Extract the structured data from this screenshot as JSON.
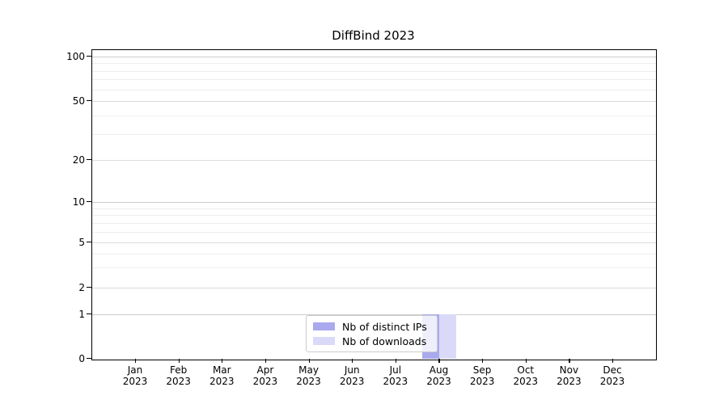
{
  "title": "DiffBind 2023",
  "chart_data": {
    "type": "bar",
    "title": "DiffBind 2023",
    "categories": [
      "Jan 2023",
      "Feb 2023",
      "Mar 2023",
      "Apr 2023",
      "May 2023",
      "Jun 2023",
      "Jul 2023",
      "Aug 2023",
      "Sep 2023",
      "Oct 2023",
      "Nov 2023",
      "Dec 2023"
    ],
    "series": [
      {
        "name": "Nb of distinct IPs",
        "color": "#a9a9ee",
        "values": [
          0,
          0,
          0,
          0,
          0,
          0,
          0,
          1,
          0,
          0,
          0,
          0
        ]
      },
      {
        "name": "Nb of downloads",
        "color": "#dadaf8",
        "values": [
          0,
          0,
          0,
          0,
          0,
          0,
          0,
          1,
          0,
          0,
          0,
          0
        ]
      }
    ],
    "xlabel": "",
    "ylabel": "",
    "yaxis": {
      "scale": "log-like with 0 baseline",
      "tick_values": [
        0,
        1,
        2,
        5,
        10,
        20,
        50,
        100
      ],
      "tick_labels": [
        "0",
        "1",
        "2",
        "5",
        "10",
        "20",
        "50",
        "100"
      ],
      "minor_tick_values": [
        3,
        4,
        6,
        7,
        8,
        9,
        30,
        40,
        60,
        70,
        80,
        90
      ],
      "range": [
        0,
        110
      ]
    },
    "grid": "horizontal major and minor gridlines",
    "legend_position": "lower center"
  },
  "colors": {
    "distinct_ips": "#a9a9ee",
    "downloads": "#dadaf8",
    "grid_major": "#dcdcdc",
    "grid_minor": "#ededed",
    "spine": "#000000",
    "legend_border": "#cccccc"
  }
}
